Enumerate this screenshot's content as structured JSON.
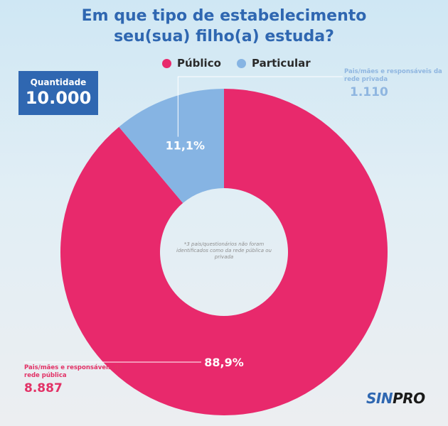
{
  "title": {
    "line1": "Em que tipo de estabelecimento",
    "line2": "seu(sua) filho(a) estuda?"
  },
  "legend": [
    {
      "label": "Público",
      "color": "#e8296c"
    },
    {
      "label": "Particular",
      "color": "#86b4e3"
    }
  ],
  "quantity": {
    "label": "Quantidade",
    "value": "10.000"
  },
  "callouts": {
    "private": {
      "text": "Pais/mães e responsáveis da rede privada",
      "value": "1.110"
    },
    "public": {
      "text": "Pais/mães e responsáveis da rede pública",
      "value": "8.887"
    }
  },
  "center_note": "*3 pais/questionários não foram identificados como da rede pública ou privada",
  "logo": {
    "prefix": "SIN",
    "suffix": "PRO"
  },
  "chart_data": {
    "type": "pie",
    "donut": true,
    "title": "Em que tipo de estabelecimento seu(sua) filho(a) estuda?",
    "categories": [
      "Público",
      "Particular"
    ],
    "values": [
      88.9,
      11.1
    ],
    "labels": [
      "88,9%",
      "11,1%"
    ],
    "counts": [
      8887,
      1110
    ],
    "colors": [
      "#e8296c",
      "#86b4e3"
    ],
    "legend_position": "top-center",
    "start": "top",
    "direction": "clockwise"
  }
}
